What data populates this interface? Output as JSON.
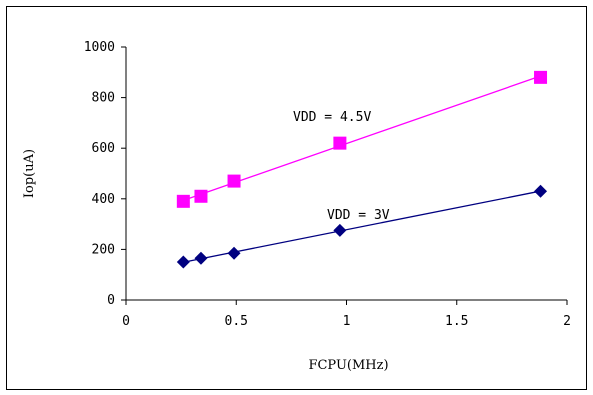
{
  "chart_data": {
    "type": "scatter",
    "title": "",
    "xlabel": "FCPU(MHz)",
    "ylabel": "Iop(uA)",
    "xlim": [
      0,
      2
    ],
    "ylim": [
      0,
      1000
    ],
    "x_ticks": [
      0,
      0.5,
      1,
      1.5,
      2
    ],
    "x_tick_labels": [
      "0",
      "0.5",
      "1",
      "1.5",
      "2"
    ],
    "y_ticks": [
      0,
      200,
      400,
      600,
      800,
      1000
    ],
    "y_tick_labels": [
      "0",
      "200",
      "400",
      "600",
      "800",
      "1000"
    ],
    "grid": false,
    "legend": "none",
    "series": [
      {
        "name": "VDD = 4.5V",
        "marker": "square",
        "color": "#FF00FF",
        "line_color": "#FF00FF",
        "trendline": true,
        "x": [
          0.26,
          0.34,
          0.49,
          0.97,
          1.88
        ],
        "y": [
          390,
          410,
          470,
          620,
          880
        ]
      },
      {
        "name": "VDD = 3V",
        "marker": "diamond",
        "color": "#000080",
        "line_color": "#000080",
        "trendline": true,
        "x": [
          0.26,
          0.34,
          0.49,
          0.97,
          1.88
        ],
        "y": [
          150,
          165,
          185,
          275,
          430
        ]
      }
    ]
  }
}
